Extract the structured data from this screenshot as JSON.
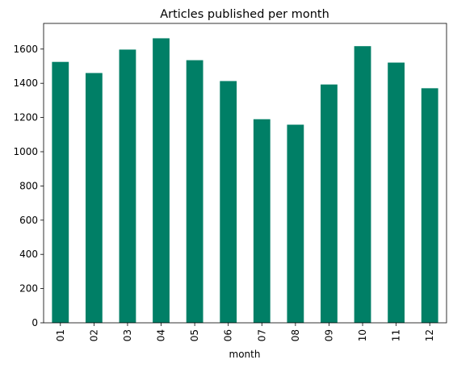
{
  "chart_data": {
    "type": "bar",
    "title": "Articles published per month",
    "xlabel": "month",
    "ylabel": "",
    "categories": [
      "01",
      "02",
      "03",
      "04",
      "05",
      "06",
      "07",
      "08",
      "09",
      "10",
      "11",
      "12"
    ],
    "values": [
      1525,
      1460,
      1597,
      1663,
      1535,
      1413,
      1190,
      1158,
      1393,
      1617,
      1521,
      1371
    ],
    "ylim": [
      0,
      1750
    ],
    "yticks": [
      0,
      200,
      400,
      600,
      800,
      1000,
      1200,
      1400,
      1600
    ],
    "bar_color": "#007f66",
    "grid": false,
    "legend": "none"
  }
}
